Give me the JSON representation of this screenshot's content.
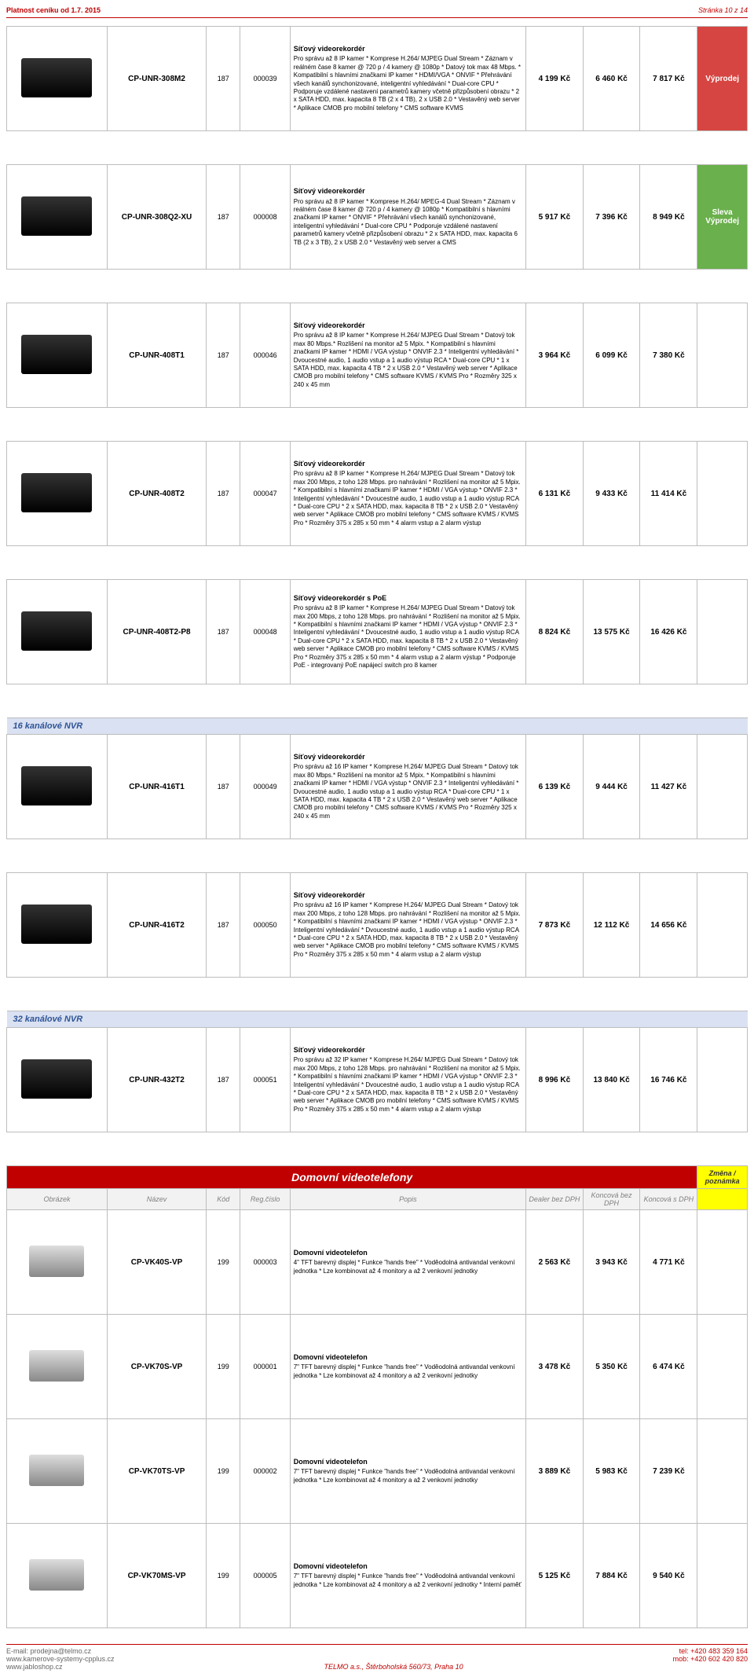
{
  "page_header": {
    "validity": "Platnost ceníku od 1.7. 2015",
    "page_no": "Stránka 10 z 14"
  },
  "products": [
    {
      "code": "CP-UNR-308M2",
      "kod": "187",
      "reg": "000039",
      "title": "Síťový videorekordér",
      "desc": "Pro správu až 8 IP kamer * Komprese H.264/ MJPEG Dual Stream * Záznam v reálném čase 8 kamer @ 720 p / 4 kamery @ 1080p * Datový tok max 48 Mbps. * Kompatibilní s hlavními značkami IP kamer * HDMI/VGA * ONVIF * Přehrávání všech kanálů synchonizované, inteligentní vyhledávání * Dual-core CPU * Podporuje vzdálené nastavení parametrů kamery včetně přizpůsobení obrazu * 2 x SATA HDD, max. kapacita 8 TB (2 x 4 TB), 2 x USB 2.0 * Vestavěný web server * Aplikace CMOB pro mobilní telefony * CMS software KVMS",
      "p1": "4 199 Kč",
      "p2": "6 460 Kč",
      "p3": "7 817 Kč",
      "tag": "Výprodej",
      "tag_class": "vyprodej"
    },
    {
      "code": "CP-UNR-308Q2-XU",
      "kod": "187",
      "reg": "000008",
      "title": "Síťový videorekordér",
      "desc": "Pro správu až 8 IP kamer * Komprese H.264/ MPEG-4 Dual Stream * Záznam v reálném čase 8 kamer @ 720 p / 4 kamery @ 1080p * Kompatibilní s hlavními značkami IP kamer * ONVIF * Přehrávání všech kanálů synchonizované, inteligentní vyhledávání * Dual-core CPU * Podporuje vzdálené nastavení parametrů kamery včetně přizpůsobení obrazu * 2 x SATA HDD, max. kapacita 6 TB (2 x 3 TB), 2 x USB 2.0 * Vestavěný web server a CMS",
      "p1": "5 917 Kč",
      "p2": "7 396 Kč",
      "p3": "8 949 Kč",
      "tag": "Sleva",
      "tag2": "Výprodej",
      "tag_class": "sleva"
    },
    {
      "code": "CP-UNR-408T1",
      "kod": "187",
      "reg": "000046",
      "title": "Síťový videorekordér",
      "desc": "Pro správu až 8 IP kamer * Komprese H.264/ MJPEG Dual Stream * Datový tok max 80 Mbps.* Rozlišení na monitor až 5 Mpix. * Kompatibilní s hlavními značkami IP kamer * HDMI / VGA výstup * ONVIF 2.3 * Inteligentní vyhledávání * Dvoucestné audio, 1 audio vstup a 1 audio výstup RCA * Dual-core CPU * 1 x SATA HDD, max. kapacita 4 TB * 2 x USB 2.0 * Vestavěný web server * Aplikace CMOB pro mobilní telefony * CMS software KVMS / KVMS Pro * Rozměry 325 x 240 x 45 mm",
      "p1": "3 964 Kč",
      "p2": "6 099 Kč",
      "p3": "7 380 Kč"
    },
    {
      "code": "CP-UNR-408T2",
      "kod": "187",
      "reg": "000047",
      "title": "Síťový videorekordér",
      "desc": "Pro správu až 8 IP kamer * Komprese H.264/ MJPEG Dual Stream * Datový tok max 200 Mbps, z toho 128 Mbps. pro nahrávání * Rozlišení na monitor až 5 Mpix. * Kompatibilní s hlavními značkami IP kamer * HDMI / VGA výstup * ONVIF 2.3 * Inteligentní vyhledávání * Dvoucestné audio, 1 audio vstup a 1 audio výstup RCA * Dual-core CPU * 2 x SATA HDD, max. kapacita 8 TB * 2 x USB 2.0 * Vestavěný web server * Aplikace CMOB pro mobilní telefony * CMS software KVMS / KVMS Pro * Rozměry 375 x 285 x 50 mm * 4 alarm vstup a 2 alarm výstup",
      "p1": "6 131 Kč",
      "p2": "9 433 Kč",
      "p3": "11 414 Kč"
    },
    {
      "code": "CP-UNR-408T2-P8",
      "kod": "187",
      "reg": "000048",
      "title": "Síťový videorekordér s PoE",
      "desc": "Pro správu až 8 IP kamer * Komprese H.264/ MJPEG Dual Stream * Datový tok max 200 Mbps, z toho 128 Mbps. pro nahrávání * Rozlišení na monitor až 5 Mpix. * Kompatibilní s hlavními značkami IP kamer * HDMI / VGA výstup * ONVIF 2.3 * Inteligentní vyhledávání * Dvoucestné audio, 1 audio vstup a 1 audio výstup RCA * Dual-core CPU * 2 x SATA HDD, max. kapacita 8 TB * 2 x USB 2.0 * Vestavěný web server * Aplikace CMOB pro mobilní telefony * CMS software KVMS / KVMS Pro * Rozměry 375 x 285 x 50 mm * 4 alarm vstup a 2 alarm výstup * Podporuje PoE - integrovaný PoE napájecí switch pro 8 kamer",
      "p1": "8 824 Kč",
      "p2": "13 575 Kč",
      "p3": "16 426 Kč"
    }
  ],
  "section16": "16 kanálové NVR",
  "products16": [
    {
      "code": "CP-UNR-416T1",
      "kod": "187",
      "reg": "000049",
      "title": "Síťový videorekordér",
      "desc": "Pro správu až 16 IP kamer * Komprese H.264/ MJPEG Dual Stream * Datový tok max 80 Mbps.* Rozlišení na monitor až 5 Mpix. * Kompatibilní s hlavními značkami IP kamer * HDMI / VGA výstup * ONVIF 2.3 * Inteligentní vyhledávání * Dvoucestné audio, 1 audio vstup a 1 audio výstup RCA * Dual-core CPU * 1 x SATA HDD, max. kapacita 4 TB * 2 x USB 2.0 * Vestavěný web server * Aplikace CMOB pro mobilní telefony * CMS software KVMS / KVMS Pro * Rozměry 325 x 240 x 45 mm",
      "p1": "6 139 Kč",
      "p2": "9 444 Kč",
      "p3": "11 427 Kč"
    },
    {
      "code": "CP-UNR-416T2",
      "kod": "187",
      "reg": "000050",
      "title": "Síťový videorekordér",
      "desc": "Pro správu až 16 IP kamer * Komprese H.264/ MJPEG Dual Stream * Datový tok max 200 Mbps, z toho 128 Mbps. pro nahrávání * Rozlišení na monitor až 5 Mpix. * Kompatibilní s hlavními značkami IP kamer * HDMI / VGA výstup * ONVIF 2.3 * Inteligentní vyhledávání * Dvoucestné audio, 1 audio vstup a 1 audio výstup RCA * Dual-core CPU * 2 x SATA HDD, max. kapacita 8 TB * 2 x USB 2.0 * Vestavěný web server * Aplikace CMOB pro mobilní telefony * CMS software KVMS / KVMS Pro * Rozměry 375 x 285 x 50 mm * 4 alarm vstup a 2 alarm výstup",
      "p1": "7 873 Kč",
      "p2": "12 112 Kč",
      "p3": "14 656 Kč"
    }
  ],
  "section32": "32 kanálové NVR",
  "products32": [
    {
      "code": "CP-UNR-432T2",
      "kod": "187",
      "reg": "000051",
      "title": "Síťový videorekordér",
      "desc": "Pro správu až 32 IP kamer * Komprese H.264/ MJPEG Dual Stream * Datový tok max 200 Mbps, z toho 128 Mbps. pro nahrávání * Rozlišení na monitor až 5 Mpix. * Kompatibilní s hlavními značkami IP kamer * HDMI / VGA výstup * ONVIF 2.3 * Inteligentní vyhledávání * Dvoucestné audio, 1 audio vstup a 1 audio výstup RCA * Dual-core CPU * 2 x SATA HDD, max. kapacita 8 TB * 2 x USB 2.0 * Vestavěný web server * Aplikace CMOB pro mobilní telefony * CMS software KVMS / KVMS Pro * Rozměry 375 x 285 x 50 mm * 4 alarm vstup a 2 alarm výstup",
      "p1": "8 996 Kč",
      "p2": "13 840 Kč",
      "p3": "16 746 Kč"
    }
  ],
  "domo_section": "Domovní videotelefony",
  "col_headers": {
    "obrazek": "Obrázek",
    "nazev": "Název",
    "kod": "Kód",
    "reg": "Reg.číslo",
    "popis": "Popis",
    "dealer": "Dealer bez DPH",
    "konc_bez": "Koncová bez DPH",
    "konc_s": "Koncová s DPH",
    "zmena": "Změna / poznámka"
  },
  "domo_products": [
    {
      "code": "CP-VK40S-VP",
      "kod": "199",
      "reg": "000003",
      "title": "Domovní videotelefon",
      "desc": "4\" TFT barevný displej * Funkce \"hands free\" * Voděodolná antivandal venkovní jednotka * Lze kombinovat až 4 monitory a až 2 venkovní jednotky",
      "p1": "2 563 Kč",
      "p2": "3 943 Kč",
      "p3": "4 771 Kč"
    },
    {
      "code": "CP-VK70S-VP",
      "kod": "199",
      "reg": "000001",
      "title": "Domovní videotelefon",
      "desc": "7\" TFT barevný displej * Funkce \"hands free\" * Voděodolná antivandal venkovní jednotka * Lze kombinovat až 4 monitory a až 2 venkovní jednotky",
      "p1": "3 478 Kč",
      "p2": "5 350 Kč",
      "p3": "6 474 Kč"
    },
    {
      "code": "CP-VK70TS-VP",
      "kod": "199",
      "reg": "000002",
      "title": "Domovní videotelefon",
      "desc": "7\" TFT barevný displej * Funkce \"hands free\" * Voděodolná antivandal venkovní jednotka * Lze kombinovat až 4 monitory a až 2 venkovní jednotky",
      "p1": "3 889 Kč",
      "p2": "5 983 Kč",
      "p3": "7 239 Kč"
    },
    {
      "code": "CP-VK70MS-VP",
      "kod": "199",
      "reg": "000005",
      "title": "Domovní videotelefon",
      "desc": "7\" TFT barevný displej * Funkce \"hands free\" * Voděodolná antivandal venkovní jednotka * Lze kombinovat až 4 monitory a až 2 venkovní jednotky * Interní paměť",
      "p1": "5 125 Kč",
      "p2": "7 884 Kč",
      "p3": "9 540 Kč"
    }
  ],
  "footer": {
    "email": "E-mail: prodejna@telmo.cz",
    "web1": "www.kamerove-systemy-cpplus.cz",
    "web2": "www.jabloshop.cz",
    "center": "TELMO a.s., Štěrboholská 560/73, Praha 10",
    "tel": "tel: +420 483 359 164",
    "mob": "mob: +420 602 420 820"
  }
}
